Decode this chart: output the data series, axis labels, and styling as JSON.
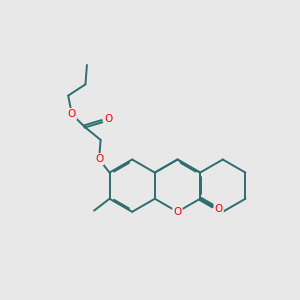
{
  "bg_color": "#e8e8e8",
  "bond_color": "#2d6e6e",
  "heteroatom_color": "#ff0000",
  "line_width": 1.4,
  "doffset": 0.045,
  "figsize": [
    3.0,
    3.0
  ],
  "dpi": 100,
  "xlim": [
    0,
    10
  ],
  "ylim": [
    0,
    10
  ]
}
